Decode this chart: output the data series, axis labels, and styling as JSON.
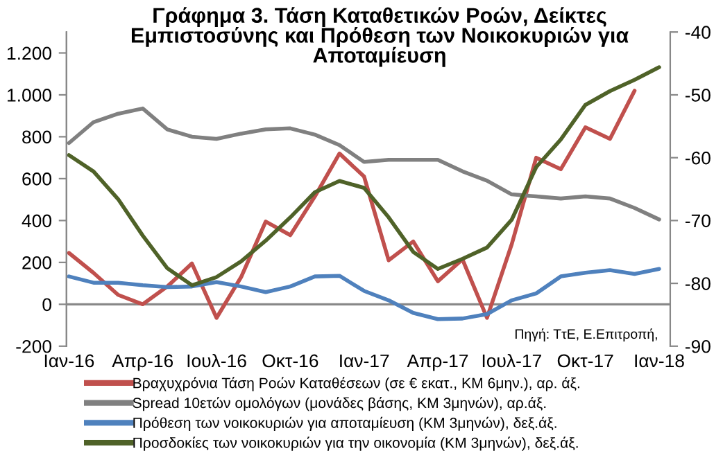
{
  "chart_data": {
    "type": "line",
    "title": "Γράφημα 3. Τάση Καταθετικών Ροών, Δείκτες Εμπιστοσύνης και Πρόθεση των Νοικοκυριών για Αποταμίευση",
    "categories": [
      "Ιαν-16",
      null,
      null,
      "Απρ-16",
      null,
      null,
      "Ιουλ-16",
      null,
      null,
      "Οκτ-16",
      null,
      null,
      "Ιαν-17",
      null,
      null,
      "Απρ-17",
      null,
      null,
      "Ιουλ-17",
      null,
      null,
      "Οκτ-17",
      null,
      null,
      "Ιαν-18"
    ],
    "series": [
      {
        "name": "Βραχυχρόνια Τάση Ροών Καταθέσεων (σε € εκατ., ΚΜ 6μην.), αρ. άξ.",
        "color": "#c0504d",
        "values": [
          245,
          150,
          45,
          0,
          85,
          195,
          -65,
          130,
          395,
          330,
          515,
          720,
          610,
          210,
          300,
          110,
          215,
          -65,
          285,
          700,
          645,
          845,
          790,
          1020,
          null
        ]
      },
      {
        "name": "Spread 10ετών ομολόγων (μονάδες βάσης, ΚΜ 3μηνών), αρ.άξ.",
        "color": "#808080",
        "values": [
          770,
          870,
          910,
          935,
          835,
          800,
          790,
          815,
          835,
          840,
          810,
          760,
          680,
          690,
          690,
          690,
          635,
          590,
          525,
          515,
          505,
          515,
          505,
          460,
          405
        ]
      },
      {
        "name": "Πρόθεση των νοικοκυριών για αποταμίευση (ΚΜ 3μηνών), δεξ.άξ.",
        "color": "#4f81bd",
        "axis": "y2",
        "values": [
          -78.9,
          -79.9,
          -79.9,
          -80.3,
          -80.6,
          -80.5,
          -79.8,
          -80.5,
          -81.4,
          -80.5,
          -78.9,
          -78.8,
          -81.2,
          -82.7,
          -84.7,
          -85.7,
          -85.6,
          -84.9,
          -82.7,
          -81.6,
          -78.9,
          -78.3,
          -77.9,
          -78.5,
          -77.7
        ]
      },
      {
        "name": "Προσδοκίες των νοικοκυριών για την οικονομία (ΚΜ 3μηνών), δεξ.άξ.",
        "color": "#4f6228",
        "axis": "y2",
        "values": [
          -59.6,
          -62.2,
          -66.6,
          -72.4,
          -77.6,
          -80.3,
          -79.0,
          -76.5,
          -73.2,
          -69.5,
          -65.5,
          -63.7,
          -64.8,
          -69.5,
          -75.0,
          -77.7,
          -76.1,
          -74.3,
          -69.9,
          -61.5,
          -57.1,
          -51.6,
          -49.4,
          -47.6,
          -45.6
        ]
      }
    ],
    "ylim": [
      -200,
      1300
    ],
    "yticks": [
      {
        "value": -200,
        "label": "-200"
      },
      0,
      200,
      400,
      600,
      800,
      {
        "value": 1000,
        "label": "1.000"
      },
      {
        "value": 1200,
        "label": "1.200"
      }
    ],
    "y2lim": [
      -90,
      -40
    ],
    "y2ticks": [
      -90,
      -80,
      -70,
      -60,
      -50,
      -40
    ],
    "annotations": [
      "Πηγή: ΤτΕ, Ε.Επιτροπή,"
    ],
    "ref_lines": [
      {
        "axis": "y",
        "value": 0,
        "color": "#888888"
      }
    ],
    "legend": "bottom",
    "grid": false
  }
}
